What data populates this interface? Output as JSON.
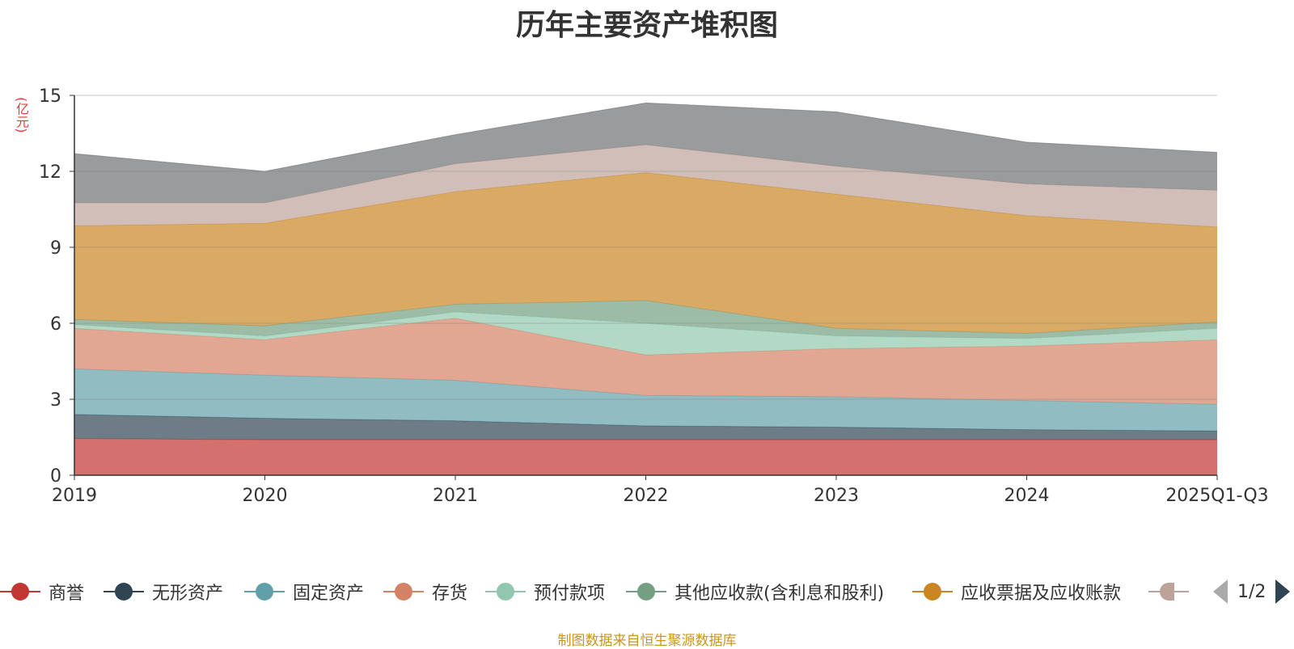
{
  "chart_data": {
    "type": "area",
    "stacked": true,
    "title": "历年主要资产堆积图",
    "ylabel": "(亿元)",
    "ylim": [
      0,
      15
    ],
    "yticks": [
      0,
      3,
      6,
      9,
      12,
      15
    ],
    "categories": [
      "2019",
      "2020",
      "2021",
      "2022",
      "2023",
      "2024",
      "2025Q1-Q3"
    ],
    "series": [
      {
        "name": "商誉",
        "color": "#c23531",
        "values": [
          1.45,
          1.4,
          1.4,
          1.4,
          1.4,
          1.4,
          1.4
        ]
      },
      {
        "name": "无形资产",
        "color": "#2f4554",
        "values": [
          0.95,
          0.85,
          0.75,
          0.55,
          0.5,
          0.4,
          0.35
        ]
      },
      {
        "name": "固定资产",
        "color": "#61a0a8",
        "values": [
          1.8,
          1.7,
          1.6,
          1.2,
          1.2,
          1.15,
          1.05
        ]
      },
      {
        "name": "存货",
        "color": "#d48265",
        "values": [
          1.6,
          1.4,
          2.45,
          1.6,
          1.9,
          2.15,
          2.55
        ]
      },
      {
        "name": "预付款项",
        "color": "#91c7ae",
        "values": [
          0.15,
          0.15,
          0.25,
          1.25,
          0.5,
          0.3,
          0.45
        ]
      },
      {
        "name": "其他应收款(含利息和股利)",
        "color": "#749f83",
        "values": [
          0.2,
          0.4,
          0.3,
          0.9,
          0.3,
          0.2,
          0.25
        ]
      },
      {
        "name": "应收票据及应收账款",
        "color": "#ca8622",
        "values": [
          3.7,
          4.05,
          4.45,
          5.05,
          5.3,
          4.65,
          3.75
        ]
      },
      {
        "name": "",
        "color": "#bda29a",
        "values": [
          0.9,
          0.8,
          1.1,
          1.1,
          1.1,
          1.25,
          1.45
        ]
      },
      {
        "name": "",
        "color": "#6e7074",
        "values": [
          1.95,
          1.25,
          1.15,
          1.65,
          2.15,
          1.65,
          1.5
        ]
      }
    ],
    "legend": {
      "position": "bottom",
      "items": [
        {
          "name": "商誉",
          "color": "#c23531"
        },
        {
          "name": "无形资产",
          "color": "#2f4554"
        },
        {
          "name": "固定资产",
          "color": "#61a0a8"
        },
        {
          "name": "存货",
          "color": "#d48265"
        },
        {
          "name": "预付款项",
          "color": "#91c7ae"
        },
        {
          "name": "其他应收款(含利息和股利)",
          "color": "#749f83"
        },
        {
          "name": "应收票据及应收账款",
          "color": "#ca8622"
        },
        {
          "name": "",
          "color": "#bda29a"
        }
      ],
      "page": "1/2"
    },
    "source": "制图数据来自恒生聚源数据库"
  }
}
